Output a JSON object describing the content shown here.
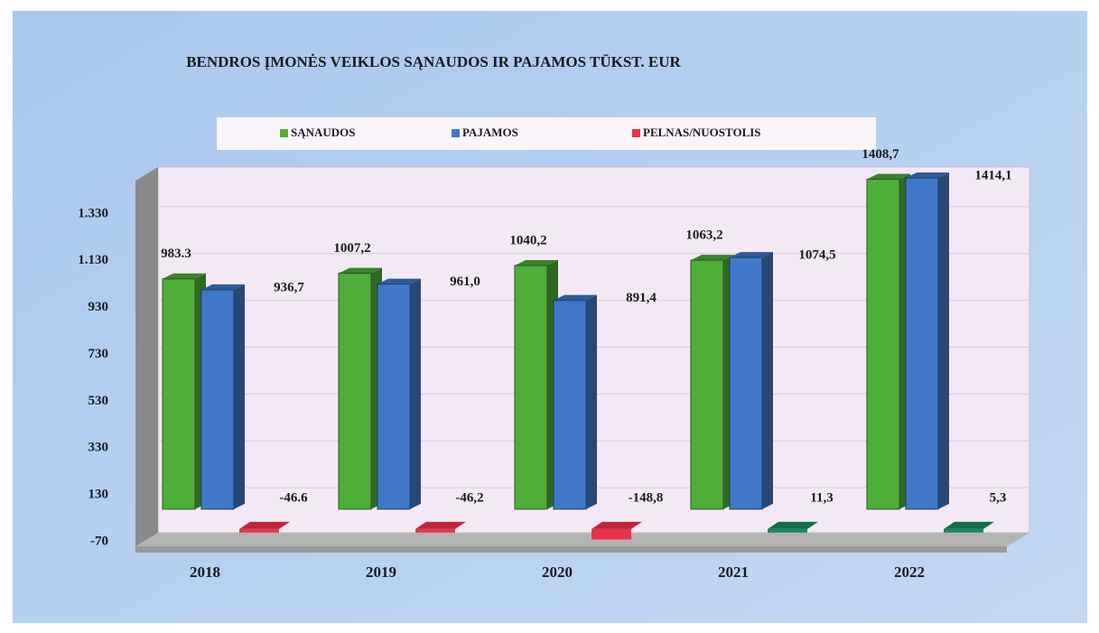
{
  "chart_data": {
    "type": "bar3d",
    "title": "BENDROS ĮMONĖS VEIKLOS SĄNAUDOS IR PAJAMOS TŪKST. EUR",
    "categories": [
      "2018",
      "2019",
      "2020",
      "2021",
      "2022"
    ],
    "series": [
      {
        "name": "SĄNAUDOS",
        "color": "#4fae3a",
        "values": [
          983.3,
          1007.2,
          1040.2,
          1063.2,
          1408.7
        ],
        "value_labels": [
          "983.3",
          "1007,2",
          "1040,2",
          "1063,2",
          "1408,7"
        ]
      },
      {
        "name": "PAJAMOS",
        "color": "#3f78c9",
        "values": [
          936.7,
          961.0,
          891.4,
          1074.5,
          1414.1
        ],
        "value_labels": [
          "936,7",
          "961,0",
          "891,4",
          "1074,5",
          "1414,1"
        ]
      },
      {
        "name": "PELNAS/NUOSTOLIS",
        "color": "#e8334a",
        "values": [
          -46.6,
          -46.2,
          -148.8,
          11.3,
          5.3
        ],
        "value_labels": [
          "-46.6",
          "-46,2",
          "-148,8",
          "11,3",
          "5,3"
        ]
      }
    ],
    "positive_color": "#1a8a60",
    "ylim": [
      -70,
      1530
    ],
    "yticks": [
      -70,
      130,
      330,
      530,
      730,
      930,
      {
        "value": 1130,
        "label": "1.130"
      },
      {
        "value": 1330,
        "label": "1.330"
      }
    ],
    "grid": true,
    "legend": "top"
  }
}
